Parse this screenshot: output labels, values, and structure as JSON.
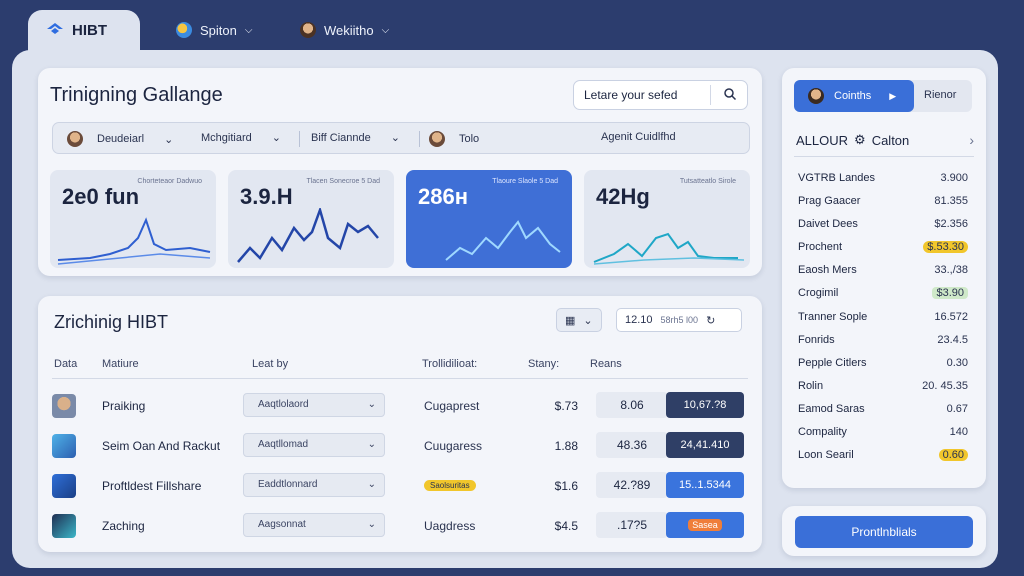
{
  "app": {
    "brand": "HIBT"
  },
  "top_nav": [
    {
      "label": "Spiton",
      "icon": "globe-icon"
    },
    {
      "label": "Wekiitho",
      "icon": "avatar"
    }
  ],
  "overview": {
    "title": "Trinigning Gallange",
    "search_placeholder": "Letare your sefed",
    "filters": [
      {
        "label": "Deudeiarl"
      },
      {
        "label": "Mchgitiard"
      },
      {
        "label": "Biff Ciannde"
      },
      {
        "label": "Tolo"
      },
      {
        "label": "Agenit Cuidlfhd"
      }
    ],
    "stats": [
      {
        "value": "2e0 fun",
        "sub": "Chorteteaor Dadwuo"
      },
      {
        "value": "3.9.H",
        "sub": "Tlacen Sonecroe 5 Dad"
      },
      {
        "value": "286н",
        "sub": "Tlaoure Slaole 5 Dad"
      },
      {
        "value": "42Hg",
        "sub": "Tutsatteatlo Sirole"
      }
    ]
  },
  "table": {
    "title": "Zrichinig HIBT",
    "search_value": "12.10",
    "search_suffix": "58rh5 l00",
    "headers": [
      "Data",
      "Matiure",
      "Leat by",
      "Trollidilioat:",
      "Stany:",
      "Reans"
    ],
    "rows": [
      {
        "name": "Praiking",
        "dropdown": "Aaqtlolaord",
        "status": "Cugaprest",
        "status_badge": false,
        "price": "$.73",
        "metric": "8.06",
        "action": "10,67.?8",
        "action_style": "dark"
      },
      {
        "name": "Seim Oan And Rackut",
        "dropdown": "Aaqtllomad",
        "status": "Cuugaress",
        "status_badge": false,
        "price": "1.88",
        "metric": "48.36",
        "action": "24,41.410",
        "action_style": "dark"
      },
      {
        "name": "Proftldest Fillshare",
        "dropdown": "Eaddtlonnard",
        "status": "Saolsuritas",
        "status_badge": true,
        "price": "$1.6",
        "metric": "42.?89",
        "action": "15..1.5344",
        "action_style": "blue"
      },
      {
        "name": "Zaching",
        "dropdown": "Aagsonnat",
        "status": "Uagdress",
        "price": "$4.5",
        "status_badge": false,
        "metric": ".17?5",
        "action": "Sasea",
        "action_style": "pill"
      }
    ]
  },
  "side": {
    "tab_active": "Coinths",
    "tab_other": "Rienor",
    "heading": "ALLOUR",
    "heading_suffix": "Calton",
    "rows": [
      {
        "label": "VGTRB Landes",
        "value": "3.900",
        "style": ""
      },
      {
        "label": "Prag Gaacer",
        "value": "81.355",
        "style": ""
      },
      {
        "label": "Daivet Dees",
        "value": "$2.356",
        "style": ""
      },
      {
        "label": "Prochent",
        "value": "$.53.30",
        "style": "yellow"
      },
      {
        "label": "Eaosh Mers",
        "value": "33.,/38",
        "style": ""
      },
      {
        "label": "Crogimil",
        "value": "$3.90",
        "style": "green"
      },
      {
        "label": "Tranner Sople",
        "value": "16.572",
        "style": ""
      },
      {
        "label": "Fonrids",
        "value": "23.4.5",
        "style": ""
      },
      {
        "label": "Pepple Citlers",
        "value": "0.30",
        "style": ""
      },
      {
        "label": "Rolin",
        "value": "20. 45.35",
        "style": ""
      },
      {
        "label": "Eamod Saras",
        "value": "0.67",
        "style": ""
      },
      {
        "label": "Compality",
        "value": "140",
        "style": ""
      },
      {
        "label": "Loon Searil",
        "value": "0.60",
        "style": "yellow"
      }
    ],
    "cta": "Prontlnblials"
  },
  "colors": {
    "accent": "#3a6fd8",
    "background": "#2c3d6e",
    "panel": "#f3f5fa",
    "highlight": "#f1c62b"
  }
}
